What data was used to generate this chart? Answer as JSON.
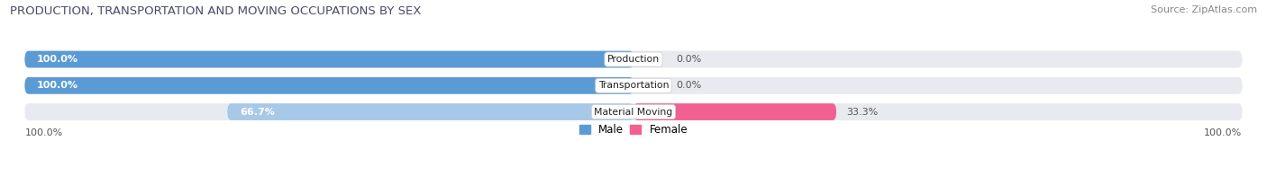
{
  "title": "PRODUCTION, TRANSPORTATION AND MOVING OCCUPATIONS BY SEX",
  "source": "Source: ZipAtlas.com",
  "categories": [
    "Production",
    "Transportation",
    "Material Moving"
  ],
  "male_values": [
    100.0,
    100.0,
    66.7
  ],
  "female_values": [
    0.0,
    0.0,
    33.3
  ],
  "male_color_full": "#5b9bd5",
  "male_color_partial": "#a8c8e8",
  "female_color_small": "#f4a0b5",
  "female_color_large": "#f06090",
  "bar_bg_color": "#e8eaf0",
  "male_label": "Male",
  "female_label": "Female",
  "bottom_left_label": "100.0%",
  "bottom_right_label": "100.0%",
  "title_color": "#4a4a6a",
  "source_color": "#888888",
  "label_text_color": "#555555"
}
